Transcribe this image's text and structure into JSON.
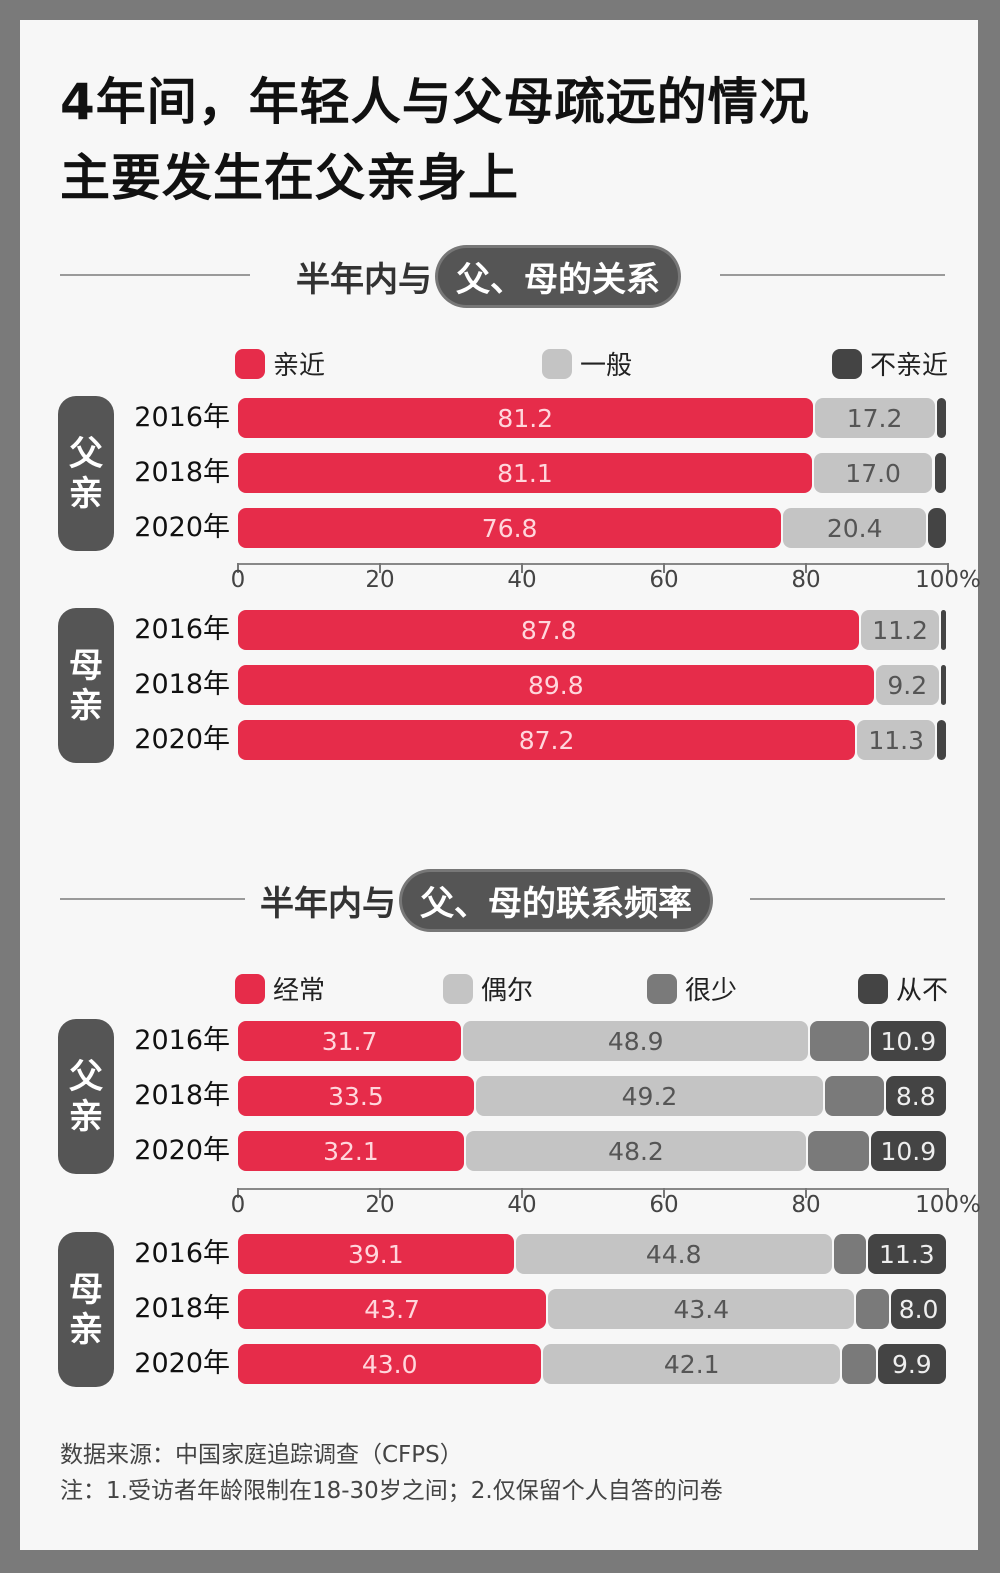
{
  "title_line1": "4年间，年轻人与父母疏远的情况",
  "title_line2": "主要发生在父亲身上",
  "sections": [
    {
      "title_prefix": "半年内与",
      "title_highlight": "父、母的关系",
      "legend": [
        "亲近",
        "一般",
        "不亲近"
      ],
      "colors": [
        "#e62c4a",
        "#c4c4c4",
        "#444444"
      ],
      "text_colors": [
        "#ffd6dc",
        "#555555",
        "#eeeeee"
      ],
      "axis_ticks": [
        "0",
        "20",
        "40",
        "60",
        "80",
        "100%"
      ]
    },
    {
      "title_prefix": "半年内与",
      "title_highlight": "父、母的联系频率",
      "legend": [
        "经常",
        "偶尔",
        "很少",
        "从不"
      ],
      "colors": [
        "#e62c4a",
        "#c4c4c4",
        "#7a7a7a",
        "#444444"
      ],
      "text_colors": [
        "#ffd6dc",
        "#555555",
        "#eeeeee",
        "#eeeeee"
      ],
      "axis_ticks": [
        "0",
        "20",
        "40",
        "60",
        "80",
        "100%"
      ]
    }
  ],
  "chart_data": [
    {
      "type": "bar",
      "stacked": true,
      "orientation": "horizontal",
      "title": "半年内与父、母的关系",
      "xlim": [
        0,
        100
      ],
      "groups": [
        {
          "name": "父亲",
          "categories": [
            "2016年",
            "2018年",
            "2020年"
          ],
          "series": [
            {
              "name": "亲近",
              "values": [
                81.2,
                81.1,
                76.8
              ]
            },
            {
              "name": "一般",
              "values": [
                17.2,
                17.0,
                20.4
              ]
            },
            {
              "name": "不亲近",
              "values": [
                1.6,
                1.9,
                2.8
              ]
            }
          ],
          "labels": [
            [
              "81.2",
              "17.2",
              ""
            ],
            [
              "81.1",
              "17.0",
              ""
            ],
            [
              "76.8",
              "20.4",
              ""
            ]
          ]
        },
        {
          "name": "母亲",
          "categories": [
            "2016年",
            "2018年",
            "2020年"
          ],
          "series": [
            {
              "name": "亲近",
              "values": [
                87.8,
                89.8,
                87.2
              ]
            },
            {
              "name": "一般",
              "values": [
                11.2,
                9.2,
                11.3
              ]
            },
            {
              "name": "不亲近",
              "values": [
                1.0,
                1.0,
                1.5
              ]
            }
          ],
          "labels": [
            [
              "87.8",
              "11.2",
              ""
            ],
            [
              "89.8",
              "9.2",
              ""
            ],
            [
              "87.2",
              "11.3",
              ""
            ]
          ]
        }
      ]
    },
    {
      "type": "bar",
      "stacked": true,
      "orientation": "horizontal",
      "title": "半年内与父、母的联系频率",
      "xlim": [
        0,
        100
      ],
      "groups": [
        {
          "name": "父亲",
          "categories": [
            "2016年",
            "2018年",
            "2020年"
          ],
          "series": [
            {
              "name": "经常",
              "values": [
                31.7,
                33.5,
                32.1
              ]
            },
            {
              "name": "偶尔",
              "values": [
                48.9,
                49.2,
                48.2
              ]
            },
            {
              "name": "很少",
              "values": [
                8.5,
                8.5,
                8.8
              ]
            },
            {
              "name": "从不",
              "values": [
                10.9,
                8.8,
                10.9
              ]
            }
          ],
          "labels": [
            [
              "31.7",
              "48.9",
              "",
              "10.9"
            ],
            [
              "33.5",
              "49.2",
              "",
              "8.8"
            ],
            [
              "32.1",
              "48.2",
              "",
              "10.9"
            ]
          ]
        },
        {
          "name": "母亲",
          "categories": [
            "2016年",
            "2018年",
            "2020年"
          ],
          "series": [
            {
              "name": "经常",
              "values": [
                39.1,
                43.7,
                43.0
              ]
            },
            {
              "name": "偶尔",
              "values": [
                44.8,
                43.4,
                42.1
              ]
            },
            {
              "name": "很少",
              "values": [
                4.8,
                4.9,
                5.0
              ]
            },
            {
              "name": "从不",
              "values": [
                11.3,
                8.0,
                9.9
              ]
            }
          ],
          "labels": [
            [
              "39.1",
              "44.8",
              "",
              "11.3"
            ],
            [
              "43.7",
              "43.4",
              "",
              "8.0"
            ],
            [
              "43.0",
              "42.1",
              "",
              "9.9"
            ]
          ]
        }
      ]
    }
  ],
  "footer": {
    "source": "数据来源：中国家庭追踪调查（CFPS）",
    "note": "注：1.受访者年龄限制在18-30岁之间；2.仅保留个人自答的问卷"
  }
}
